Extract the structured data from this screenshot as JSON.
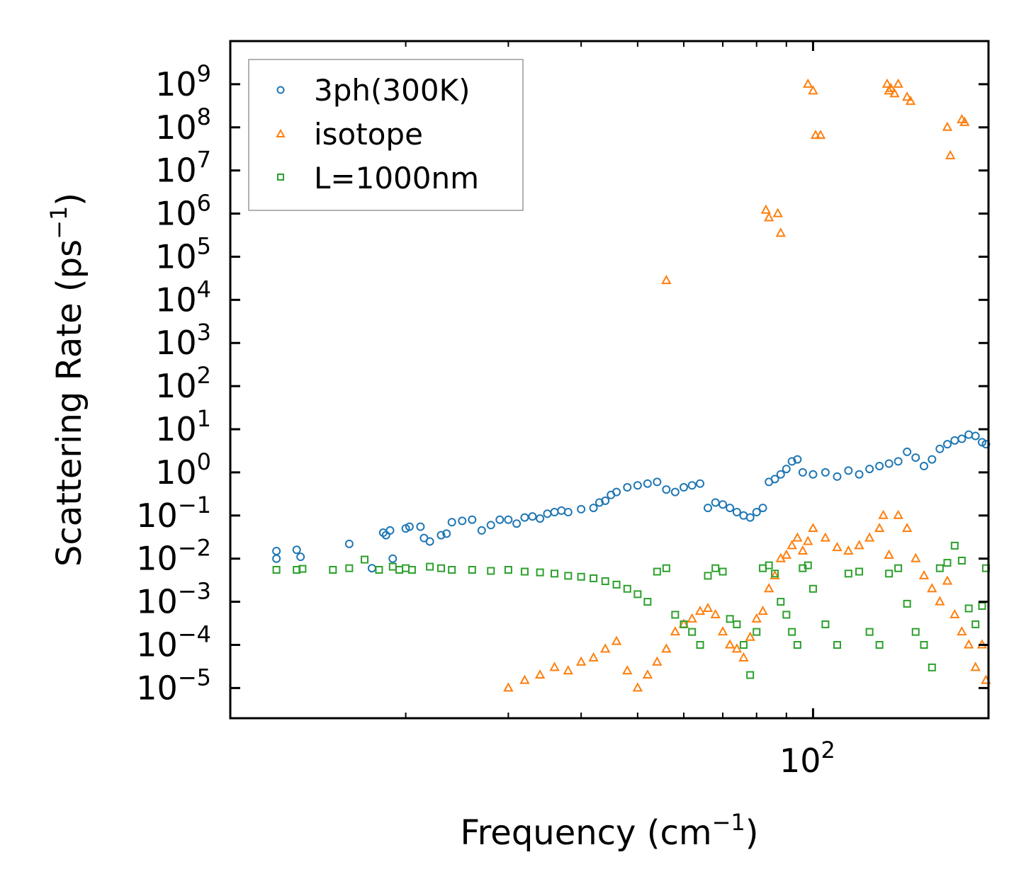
{
  "chart_data": {
    "type": "scatter",
    "title": "",
    "xlabel": {
      "text": "Frequency (cm",
      "sup": "−1",
      "tail": ")"
    },
    "ylabel": {
      "text": "Scattering Rate (ps",
      "sup": "−1",
      "tail": ")"
    },
    "xscale": "log",
    "yscale": "log",
    "xlim": [
      10,
      200
    ],
    "ylim_exp": [
      -5.7,
      10.0
    ],
    "x_tick_labels": [
      {
        "base": "10",
        "exp": "2",
        "value": 100
      }
    ],
    "y_tick_labels": [
      {
        "base": "10",
        "exp": "9",
        "value": 9
      },
      {
        "base": "10",
        "exp": "8",
        "value": 8
      },
      {
        "base": "10",
        "exp": "7",
        "value": 7
      },
      {
        "base": "10",
        "exp": "6",
        "value": 6
      },
      {
        "base": "10",
        "exp": "5",
        "value": 5
      },
      {
        "base": "10",
        "exp": "4",
        "value": 4
      },
      {
        "base": "10",
        "exp": "3",
        "value": 3
      },
      {
        "base": "10",
        "exp": "2",
        "value": 2
      },
      {
        "base": "10",
        "exp": "1",
        "value": 1
      },
      {
        "base": "10",
        "exp": "0",
        "value": 0
      },
      {
        "base": "10",
        "exp": "−1",
        "value": -1
      },
      {
        "base": "10",
        "exp": "−2",
        "value": -2
      },
      {
        "base": "10",
        "exp": "−3",
        "value": -3
      },
      {
        "base": "10",
        "exp": "−4",
        "value": -4
      },
      {
        "base": "10",
        "exp": "−5",
        "value": -5
      }
    ],
    "legend": {
      "position": "top-left"
    },
    "series": [
      {
        "name": "3ph(300K)",
        "marker": "circle",
        "color": "#1f77b4",
        "points": [
          [
            12,
            0.015
          ],
          [
            12,
            0.01
          ],
          [
            13,
            0.016
          ],
          [
            13.2,
            0.011
          ],
          [
            16,
            0.022
          ],
          [
            17.5,
            0.006
          ],
          [
            18.3,
            0.04
          ],
          [
            18.5,
            0.035
          ],
          [
            18.8,
            0.045
          ],
          [
            19,
            0.01
          ],
          [
            20,
            0.05
          ],
          [
            20.3,
            0.055
          ],
          [
            21.2,
            0.055
          ],
          [
            21.5,
            0.03
          ],
          [
            22,
            0.025
          ],
          [
            23,
            0.035
          ],
          [
            23.5,
            0.038
          ],
          [
            24,
            0.07
          ],
          [
            25,
            0.075
          ],
          [
            26,
            0.08
          ],
          [
            27,
            0.045
          ],
          [
            28,
            0.06
          ],
          [
            29,
            0.08
          ],
          [
            30,
            0.08
          ],
          [
            31,
            0.065
          ],
          [
            32,
            0.09
          ],
          [
            33,
            0.095
          ],
          [
            34,
            0.085
          ],
          [
            35,
            0.11
          ],
          [
            36,
            0.12
          ],
          [
            37,
            0.13
          ],
          [
            38,
            0.12
          ],
          [
            40,
            0.14
          ],
          [
            42,
            0.15
          ],
          [
            43,
            0.2
          ],
          [
            44,
            0.22
          ],
          [
            45,
            0.3
          ],
          [
            46,
            0.35
          ],
          [
            48,
            0.45
          ],
          [
            50,
            0.5
          ],
          [
            52,
            0.55
          ],
          [
            54,
            0.6
          ],
          [
            56,
            0.4
          ],
          [
            58,
            0.35
          ],
          [
            60,
            0.45
          ],
          [
            62,
            0.5
          ],
          [
            64,
            0.55
          ],
          [
            66,
            0.15
          ],
          [
            68,
            0.2
          ],
          [
            70,
            0.18
          ],
          [
            72,
            0.15
          ],
          [
            74,
            0.12
          ],
          [
            76,
            0.1
          ],
          [
            78,
            0.09
          ],
          [
            80,
            0.12
          ],
          [
            82,
            0.15
          ],
          [
            84,
            0.6
          ],
          [
            86,
            0.7
          ],
          [
            88,
            0.9
          ],
          [
            90,
            1.2
          ],
          [
            92,
            1.8
          ],
          [
            94,
            2.0
          ],
          [
            96,
            1.0
          ],
          [
            100,
            0.9
          ],
          [
            105,
            1.0
          ],
          [
            110,
            0.8
          ],
          [
            115,
            1.1
          ],
          [
            120,
            0.9
          ],
          [
            125,
            1.2
          ],
          [
            130,
            1.4
          ],
          [
            135,
            1.6
          ],
          [
            140,
            1.8
          ],
          [
            145,
            3.0
          ],
          [
            150,
            2.2
          ],
          [
            155,
            1.4
          ],
          [
            160,
            2.0
          ],
          [
            165,
            3.5
          ],
          [
            170,
            4.5
          ],
          [
            175,
            5.5
          ],
          [
            180,
            6.0
          ],
          [
            185,
            7.5
          ],
          [
            190,
            7.0
          ],
          [
            195,
            5.0
          ],
          [
            198,
            4.5
          ]
        ]
      },
      {
        "name": "isotope",
        "marker": "triangle",
        "color": "#ff7f0e",
        "points": [
          [
            30,
            1e-05
          ],
          [
            32,
            1.5e-05
          ],
          [
            34,
            2e-05
          ],
          [
            36,
            3e-05
          ],
          [
            38,
            2.5e-05
          ],
          [
            40,
            4e-05
          ],
          [
            42,
            5e-05
          ],
          [
            44,
            8e-05
          ],
          [
            46,
            0.00012
          ],
          [
            48,
            2.5e-05
          ],
          [
            50,
            1e-05
          ],
          [
            52,
            2e-05
          ],
          [
            54,
            4e-05
          ],
          [
            56,
            8e-05
          ],
          [
            58,
            0.0002
          ],
          [
            60,
            0.0003
          ],
          [
            62,
            0.0004
          ],
          [
            64,
            0.0006
          ],
          [
            66,
            0.0007
          ],
          [
            68,
            0.0005
          ],
          [
            70,
            0.0002
          ],
          [
            72,
            0.0001
          ],
          [
            74,
            8e-05
          ],
          [
            76,
            5e-05
          ],
          [
            78,
            0.00015
          ],
          [
            80,
            0.0004
          ],
          [
            82,
            0.0006
          ],
          [
            84,
            0.002
          ],
          [
            86,
            0.004
          ],
          [
            88,
            0.01
          ],
          [
            90,
            0.012
          ],
          [
            92,
            0.02
          ],
          [
            94,
            0.03
          ],
          [
            96,
            0.015
          ],
          [
            98,
            0.025
          ],
          [
            100,
            0.05
          ],
          [
            105,
            0.03
          ],
          [
            110,
            0.018
          ],
          [
            115,
            0.015
          ],
          [
            120,
            0.02
          ],
          [
            125,
            0.03
          ],
          [
            130,
            0.05
          ],
          [
            132,
            0.1
          ],
          [
            135,
            0.012
          ],
          [
            140,
            0.1
          ],
          [
            145,
            0.05
          ],
          [
            150,
            0.01
          ],
          [
            155,
            0.004
          ],
          [
            160,
            0.002
          ],
          [
            165,
            0.001
          ],
          [
            170,
            0.003
          ],
          [
            175,
            0.0005
          ],
          [
            180,
            0.0002
          ],
          [
            185,
            0.0001
          ],
          [
            190,
            3e-05
          ],
          [
            195,
            0.0001
          ],
          [
            198,
            1.5e-05
          ],
          [
            56,
            28000.0
          ],
          [
            83,
            1200000.0
          ],
          [
            84,
            800000.0
          ],
          [
            87,
            1000000.0
          ],
          [
            88,
            350000.0
          ],
          [
            98,
            1000000000.0
          ],
          [
            100,
            700000000.0
          ],
          [
            101,
            65000000.0
          ],
          [
            103,
            65000000.0
          ],
          [
            134,
            1000000000.0
          ],
          [
            135,
            700000000.0
          ],
          [
            136,
            800000000.0
          ],
          [
            138,
            600000000.0
          ],
          [
            140,
            1000000000.0
          ],
          [
            145,
            500000000.0
          ],
          [
            147,
            400000000.0
          ],
          [
            170,
            100000000.0
          ],
          [
            172,
            22000000.0
          ],
          [
            180,
            150000000.0
          ],
          [
            182,
            130000000.0
          ]
        ]
      },
      {
        "name": "L=1000nm",
        "marker": "square",
        "color": "#2ca02c",
        "points": [
          [
            12,
            0.0055
          ],
          [
            13,
            0.0055
          ],
          [
            13.3,
            0.0058
          ],
          [
            15,
            0.0055
          ],
          [
            16,
            0.006
          ],
          [
            17,
            0.0095
          ],
          [
            18,
            0.0055
          ],
          [
            19,
            0.0065
          ],
          [
            19.5,
            0.0055
          ],
          [
            20,
            0.006
          ],
          [
            20.5,
            0.0055
          ],
          [
            22,
            0.0065
          ],
          [
            23,
            0.006
          ],
          [
            24,
            0.0055
          ],
          [
            26,
            0.0055
          ],
          [
            28,
            0.0052
          ],
          [
            30,
            0.0055
          ],
          [
            32,
            0.005
          ],
          [
            34,
            0.0048
          ],
          [
            36,
            0.0045
          ],
          [
            38,
            0.004
          ],
          [
            40,
            0.0038
          ],
          [
            42,
            0.0035
          ],
          [
            44,
            0.003
          ],
          [
            46,
            0.0025
          ],
          [
            48,
            0.002
          ],
          [
            50,
            0.0015
          ],
          [
            52,
            0.001
          ],
          [
            54,
            0.005
          ],
          [
            56,
            0.006
          ],
          [
            58,
            0.0005
          ],
          [
            60,
            0.0003
          ],
          [
            62,
            0.0002
          ],
          [
            64,
            0.0001
          ],
          [
            66,
            0.004
          ],
          [
            68,
            0.006
          ],
          [
            70,
            0.005
          ],
          [
            72,
            0.0004
          ],
          [
            74,
            0.0003
          ],
          [
            76,
            0.0001
          ],
          [
            78,
            2e-05
          ],
          [
            80,
            0.0002
          ],
          [
            82,
            0.006
          ],
          [
            84,
            0.007
          ],
          [
            86,
            0.0045
          ],
          [
            88,
            0.001
          ],
          [
            90,
            0.0005
          ],
          [
            92,
            0.0002
          ],
          [
            94,
            0.0001
          ],
          [
            96,
            0.006
          ],
          [
            98,
            0.007
          ],
          [
            100,
            0.002
          ],
          [
            105,
            0.0003
          ],
          [
            110,
            0.0001
          ],
          [
            115,
            0.0045
          ],
          [
            120,
            0.005
          ],
          [
            125,
            0.0002
          ],
          [
            130,
            0.0001
          ],
          [
            135,
            0.0045
          ],
          [
            140,
            0.006
          ],
          [
            145,
            0.0009
          ],
          [
            150,
            0.0002
          ],
          [
            155,
            0.0001
          ],
          [
            160,
            3e-05
          ],
          [
            165,
            0.006
          ],
          [
            170,
            0.008
          ],
          [
            175,
            0.02
          ],
          [
            180,
            0.009
          ],
          [
            185,
            0.0007
          ],
          [
            190,
            0.0003
          ],
          [
            195,
            0.0008
          ],
          [
            198,
            0.006
          ]
        ]
      }
    ]
  }
}
